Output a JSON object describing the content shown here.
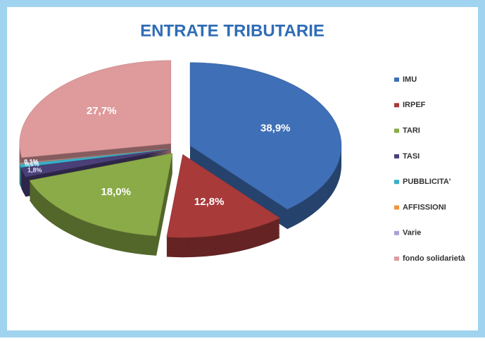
{
  "chart_data": {
    "type": "pie",
    "title": "ENTRATE TRIBUTARIE",
    "categories": [
      "IMU",
      "IRPEF",
      "TARI",
      "TASI",
      "PUBBLICITA'",
      "AFFISSIONI",
      "Varie",
      "fondo solidarietà"
    ],
    "values": [
      38.9,
      12.8,
      18.0,
      1.8,
      0.6,
      0.1,
      0.1,
      27.7
    ],
    "value_labels": [
      "38,9%",
      "12,8%",
      "18,0%",
      "1,8%",
      "0,6%",
      "0,1%",
      "0,1%",
      "27,7%"
    ],
    "colors": [
      "#3f6fb6",
      "#a83a3a",
      "#8bab48",
      "#4b3f78",
      "#3aaecb",
      "#ef9440",
      "#a8a3d6",
      "#df9a9c"
    ],
    "legend": "right"
  }
}
